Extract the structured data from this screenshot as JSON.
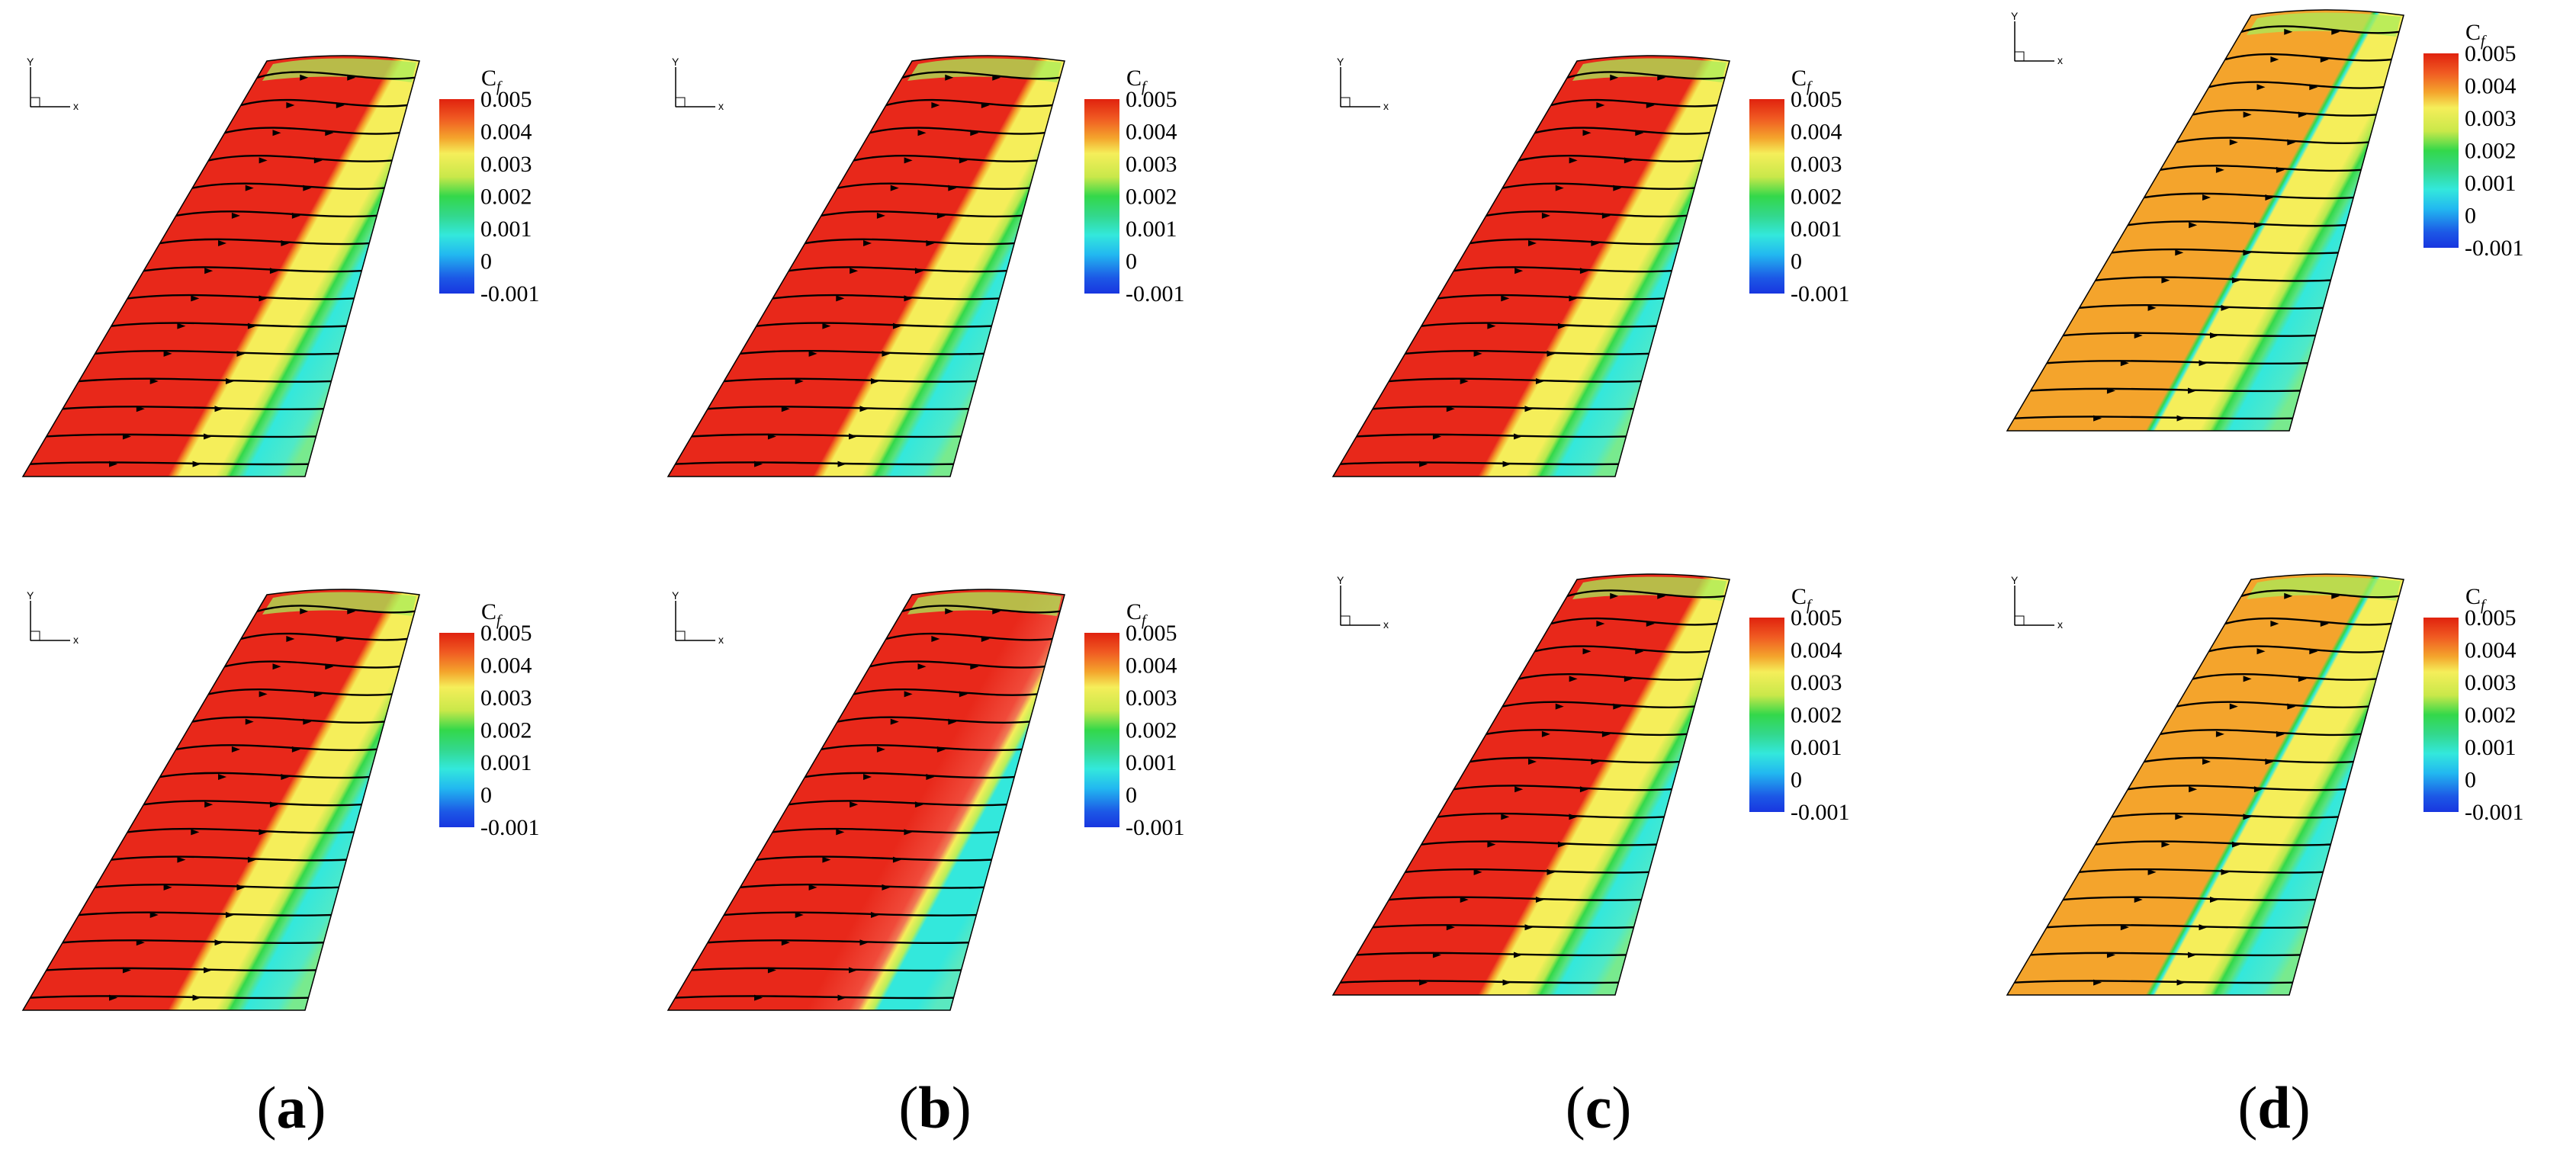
{
  "colorbar": {
    "title": "C",
    "subscript": "f",
    "ticks": [
      "0.005",
      "0.004",
      "0.003",
      "0.002",
      "0.001",
      "0",
      "-0.001"
    ]
  },
  "axes_triad": {
    "x_label": "x",
    "y_label": "Y"
  },
  "captions": [
    {
      "open": "(",
      "letter": "a",
      "close": ")"
    },
    {
      "open": "(",
      "letter": "b",
      "close": ")"
    },
    {
      "open": "(",
      "letter": "c",
      "close": ")"
    },
    {
      "open": "(",
      "letter": "d",
      "close": ")"
    }
  ],
  "panels": [
    {
      "row": "top",
      "column": "a",
      "variant": "baseline"
    },
    {
      "row": "top",
      "column": "b",
      "variant": "baseline"
    },
    {
      "row": "top",
      "column": "c",
      "variant": "baseline"
    },
    {
      "row": "top",
      "column": "d",
      "variant": "double-band"
    },
    {
      "row": "bottom",
      "column": "a",
      "variant": "baseline"
    },
    {
      "row": "bottom",
      "column": "b",
      "variant": "turbulent-red"
    },
    {
      "row": "bottom",
      "column": "c",
      "variant": "baseline"
    },
    {
      "row": "bottom",
      "column": "d",
      "variant": "double-band"
    }
  ],
  "colors": {
    "red": "#e8281a",
    "orange": "#f4a42c",
    "yellow": "#f5ee5a",
    "green": "#33d84a",
    "cyan": "#33e8dc",
    "blue": "#1836e0",
    "streamline": "#000000"
  }
}
